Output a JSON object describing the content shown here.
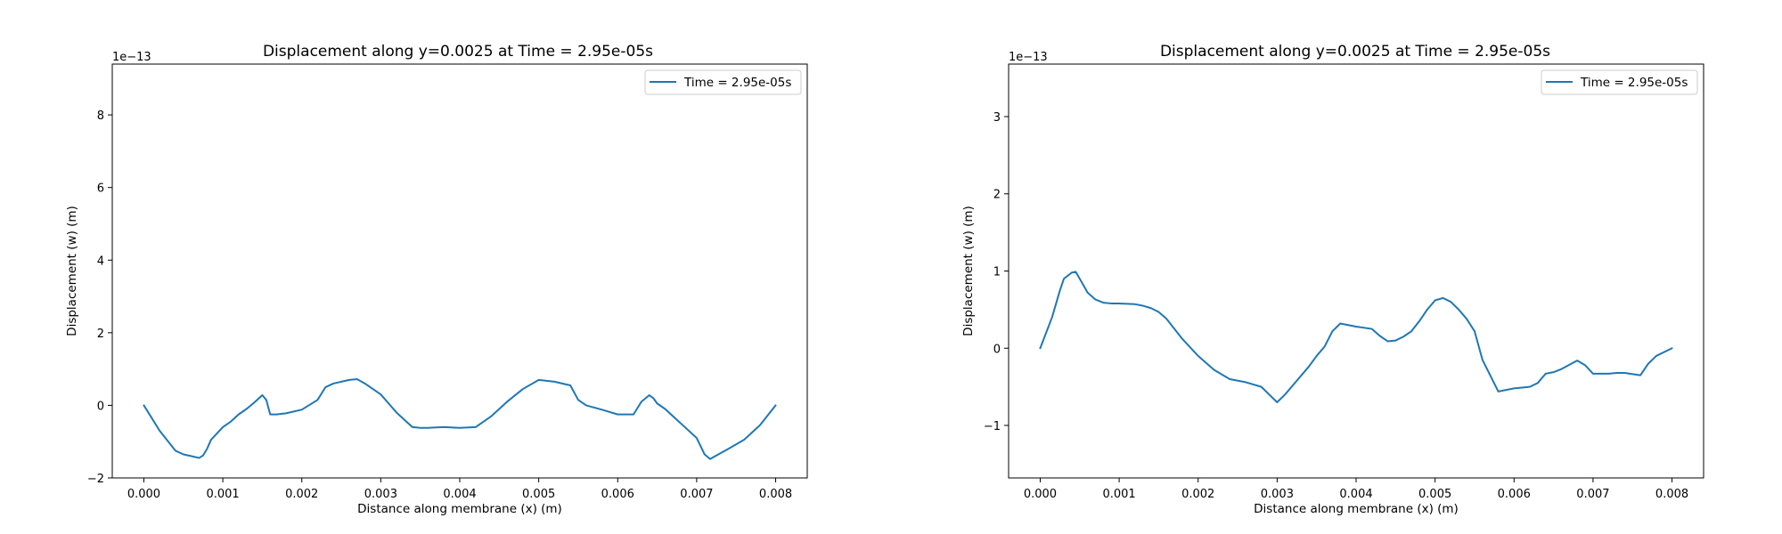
{
  "chart_data": [
    {
      "type": "line",
      "title": "Displacement along y=0.0025 at Time = 2.95e-05s",
      "xlabel": "Distance along membrane (x) (m)",
      "ylabel": "Displacement (w) (m)",
      "offset_text": "1e−13",
      "xlim": [
        -0.0004,
        0.0084
      ],
      "ylim": [
        -2.0,
        9.4
      ],
      "xticks": [
        0.0,
        0.001,
        0.002,
        0.003,
        0.004,
        0.005,
        0.006,
        0.007,
        0.008
      ],
      "xtick_labels": [
        "0.000",
        "0.001",
        "0.002",
        "0.003",
        "0.004",
        "0.005",
        "0.006",
        "0.007",
        "0.008"
      ],
      "yticks": [
        -2,
        0,
        2,
        4,
        6,
        8
      ],
      "ytick_labels": [
        "−2",
        "0",
        "2",
        "4",
        "6",
        "8"
      ],
      "legend": "top-right",
      "grid": false,
      "series": [
        {
          "name": "Time = 2.95e-05s",
          "color": "#1f77b4",
          "x": [
            0.0,
            0.0002,
            0.0004,
            0.0005,
            0.0006,
            0.0007,
            0.00075,
            0.0008,
            0.00085,
            0.001,
            0.0011,
            0.0012,
            0.0013,
            0.0014,
            0.0015,
            0.00155,
            0.0016,
            0.00168,
            0.0018,
            0.002,
            0.0022,
            0.0023,
            0.0024,
            0.0025,
            0.0026,
            0.0027,
            0.0028,
            0.0029,
            0.003,
            0.0031,
            0.0032,
            0.0033,
            0.0034,
            0.0035,
            0.0036,
            0.0037,
            0.0038,
            0.004,
            0.0042,
            0.0044,
            0.0046,
            0.0048,
            0.005,
            0.0052,
            0.0054,
            0.0055,
            0.0056,
            0.0058,
            0.006,
            0.0061,
            0.0062,
            0.0063,
            0.0064,
            0.00645,
            0.0065,
            0.0066,
            0.0068,
            0.007,
            0.0071,
            0.00717,
            0.00725,
            0.0074,
            0.0076,
            0.0078,
            0.008
          ],
          "y": [
            0.0,
            -0.7,
            -1.25,
            -1.35,
            -1.4,
            -1.45,
            -1.38,
            -1.2,
            -0.95,
            -0.6,
            -0.45,
            -0.25,
            -0.1,
            0.08,
            0.28,
            0.15,
            -0.25,
            -0.25,
            -0.22,
            -0.12,
            0.15,
            0.5,
            0.6,
            0.65,
            0.7,
            0.72,
            0.6,
            0.45,
            0.3,
            0.05,
            -0.2,
            -0.4,
            -0.6,
            -0.62,
            -0.62,
            -0.61,
            -0.6,
            -0.62,
            -0.6,
            -0.3,
            0.1,
            0.45,
            0.7,
            0.65,
            0.55,
            0.15,
            0.0,
            -0.12,
            -0.25,
            -0.25,
            -0.25,
            0.1,
            0.28,
            0.2,
            0.05,
            -0.1,
            -0.5,
            -0.9,
            -1.35,
            -1.48,
            -1.38,
            -1.2,
            -0.95,
            -0.55,
            0.0
          ]
        }
      ]
    },
    {
      "type": "line",
      "title": "Displacement along y=0.0025 at Time = 2.95e-05s",
      "xlabel": "Distance along membrane (x) (m)",
      "ylabel": "Displacement (w) (m)",
      "offset_text": "1e−13",
      "xlim": [
        -0.0004,
        0.0084
      ],
      "ylim": [
        -1.68,
        3.68
      ],
      "xticks": [
        0.0,
        0.001,
        0.002,
        0.003,
        0.004,
        0.005,
        0.006,
        0.007,
        0.008
      ],
      "xtick_labels": [
        "0.000",
        "0.001",
        "0.002",
        "0.003",
        "0.004",
        "0.005",
        "0.006",
        "0.007",
        "0.008"
      ],
      "yticks": [
        -1,
        0,
        1,
        2,
        3
      ],
      "ytick_labels": [
        "−1",
        "0",
        "1",
        "2",
        "3"
      ],
      "legend": "top-right",
      "grid": false,
      "series": [
        {
          "name": "Time = 2.95e-05s",
          "color": "#1f77b4",
          "x": [
            0.0,
            0.00015,
            0.00025,
            0.0003,
            0.0004,
            0.00045,
            0.0005,
            0.0006,
            0.0007,
            0.0008,
            0.0009,
            0.001,
            0.0012,
            0.0013,
            0.0014,
            0.0015,
            0.0016,
            0.0017,
            0.0018,
            0.002,
            0.0022,
            0.0024,
            0.0026,
            0.0028,
            0.0029,
            0.003,
            0.0031,
            0.0032,
            0.0034,
            0.0035,
            0.0036,
            0.0037,
            0.0038,
            0.004,
            0.0042,
            0.0043,
            0.0044,
            0.0045,
            0.0046,
            0.0047,
            0.0048,
            0.0049,
            0.005,
            0.0051,
            0.0052,
            0.0053,
            0.0054,
            0.0055,
            0.0056,
            0.0058,
            0.006,
            0.0062,
            0.0063,
            0.0064,
            0.0065,
            0.0066,
            0.0068,
            0.0069,
            0.007,
            0.0071,
            0.0072,
            0.0073,
            0.0074,
            0.0076,
            0.0077,
            0.0078,
            0.008
          ],
          "y": [
            0.0,
            0.4,
            0.75,
            0.9,
            0.98,
            0.99,
            0.9,
            0.72,
            0.63,
            0.59,
            0.58,
            0.58,
            0.57,
            0.55,
            0.52,
            0.47,
            0.38,
            0.25,
            0.12,
            -0.1,
            -0.28,
            -0.4,
            -0.44,
            -0.5,
            -0.6,
            -0.7,
            -0.6,
            -0.48,
            -0.24,
            -0.1,
            0.02,
            0.22,
            0.32,
            0.28,
            0.25,
            0.16,
            0.09,
            0.1,
            0.15,
            0.22,
            0.35,
            0.5,
            0.62,
            0.65,
            0.6,
            0.5,
            0.38,
            0.22,
            -0.15,
            -0.56,
            -0.52,
            -0.5,
            -0.45,
            -0.33,
            -0.31,
            -0.27,
            -0.16,
            -0.22,
            -0.33,
            -0.33,
            -0.33,
            -0.32,
            -0.32,
            -0.35,
            -0.2,
            -0.1,
            0.0
          ]
        }
      ]
    }
  ]
}
